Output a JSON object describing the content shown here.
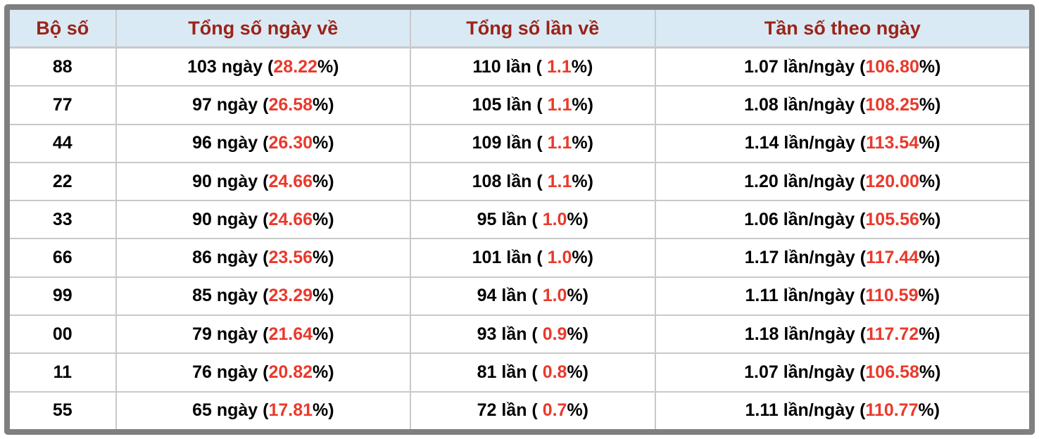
{
  "colors": {
    "frame_gray": "#7f7f7f",
    "header_bg": "#daeaf4",
    "header_text": "#9b2318",
    "accent_red": "#ea392b",
    "cell_border": "#c9c9c9",
    "body_text": "#000000"
  },
  "table": {
    "headers": [
      "Bộ số",
      "Tổng số ngày về",
      "Tổng số lần về",
      "Tần số theo ngày"
    ],
    "rows": [
      {
        "pair": "88",
        "days": {
          "pre": "103 ngày (",
          "red": "28.22",
          "post": "%)"
        },
        "times": {
          "pre": "110 lần ( ",
          "red": "1.1",
          "post": "%)"
        },
        "freq": {
          "pre": "1.07 lần/ngày (",
          "red": "106.80",
          "post": "%)"
        }
      },
      {
        "pair": "77",
        "days": {
          "pre": "97 ngày (",
          "red": "26.58",
          "post": "%)"
        },
        "times": {
          "pre": "105 lần ( ",
          "red": "1.1",
          "post": "%)"
        },
        "freq": {
          "pre": "1.08 lần/ngày (",
          "red": "108.25",
          "post": "%)"
        }
      },
      {
        "pair": "44",
        "days": {
          "pre": "96 ngày (",
          "red": "26.30",
          "post": "%)"
        },
        "times": {
          "pre": "109 lần ( ",
          "red": "1.1",
          "post": "%)"
        },
        "freq": {
          "pre": "1.14 lần/ngày (",
          "red": "113.54",
          "post": "%)"
        }
      },
      {
        "pair": "22",
        "days": {
          "pre": "90 ngày (",
          "red": "24.66",
          "post": "%)"
        },
        "times": {
          "pre": "108 lần ( ",
          "red": "1.1",
          "post": "%)"
        },
        "freq": {
          "pre": "1.20 lần/ngày (",
          "red": "120.00",
          "post": "%)"
        }
      },
      {
        "pair": "33",
        "days": {
          "pre": "90 ngày (",
          "red": "24.66",
          "post": "%)"
        },
        "times": {
          "pre": "95 lần ( ",
          "red": "1.0",
          "post": "%)"
        },
        "freq": {
          "pre": "1.06 lần/ngày (",
          "red": "105.56",
          "post": "%)"
        }
      },
      {
        "pair": "66",
        "days": {
          "pre": "86 ngày (",
          "red": "23.56",
          "post": "%)"
        },
        "times": {
          "pre": "101 lần ( ",
          "red": "1.0",
          "post": "%)"
        },
        "freq": {
          "pre": "1.17 lần/ngày (",
          "red": "117.44",
          "post": "%)"
        }
      },
      {
        "pair": "99",
        "days": {
          "pre": "85 ngày (",
          "red": "23.29",
          "post": "%)"
        },
        "times": {
          "pre": "94 lần ( ",
          "red": "1.0",
          "post": "%)"
        },
        "freq": {
          "pre": "1.11 lần/ngày (",
          "red": "110.59",
          "post": "%)"
        }
      },
      {
        "pair": "00",
        "days": {
          "pre": "79 ngày (",
          "red": "21.64",
          "post": "%)"
        },
        "times": {
          "pre": "93 lần ( ",
          "red": "0.9",
          "post": "%)"
        },
        "freq": {
          "pre": "1.18 lần/ngày (",
          "red": "117.72",
          "post": "%)"
        }
      },
      {
        "pair": "11",
        "days": {
          "pre": "76 ngày (",
          "red": "20.82",
          "post": "%)"
        },
        "times": {
          "pre": "81 lần ( ",
          "red": "0.8",
          "post": "%)"
        },
        "freq": {
          "pre": "1.07 lần/ngày (",
          "red": "106.58",
          "post": "%)"
        }
      },
      {
        "pair": "55",
        "days": {
          "pre": "65 ngày (",
          "red": "17.81",
          "post": "%)"
        },
        "times": {
          "pre": "72 lần ( ",
          "red": "0.7",
          "post": "%)"
        },
        "freq": {
          "pre": "1.11 lần/ngày (",
          "red": "110.77",
          "post": "%)"
        }
      }
    ]
  }
}
